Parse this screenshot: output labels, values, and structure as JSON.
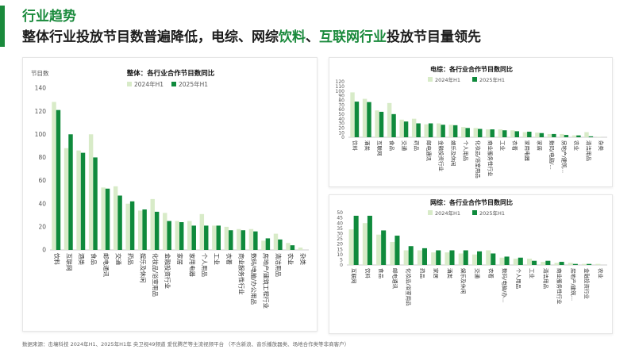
{
  "header": {
    "kicker": "行业趋势",
    "headline_parts": [
      "整体行业投放节目数普遍降低，电综、网综",
      "饮料",
      "、",
      "互联网行业",
      "投放节目量领先"
    ]
  },
  "colors": {
    "accent": "#1a8a3c",
    "series_2024": "#d8ebc8",
    "series_2025": "#0f8a3c"
  },
  "chart_data": [
    {
      "type": "bar",
      "title": "整体：各行业合作节目数同比",
      "ylabel": "节目数",
      "ylim": [
        0,
        140
      ],
      "yticks": [
        0,
        20,
        40,
        60,
        80,
        100,
        120,
        140
      ],
      "grid": false,
      "legend": "top-center",
      "categories": [
        "饮料",
        "互联网",
        "酒类",
        "食品",
        "邮电通讯",
        "交通",
        "药品",
        "娱乐及休闲",
        "化妆品/浴室用品",
        "金融投资行业",
        "家居",
        "家用电器",
        "个人用品",
        "工业",
        "衣着",
        "商业服务性行业",
        "数码/电脑/办公用品",
        "房地产/建筑工程行业",
        "清洁用品",
        "农业",
        "杂类"
      ],
      "series": [
        {
          "name": "2024年H1",
          "values": [
            128,
            88,
            86,
            100,
            54,
            55,
            40,
            34,
            44,
            32,
            25,
            25,
            31,
            21,
            20,
            18,
            18,
            8,
            14,
            6,
            2
          ]
        },
        {
          "name": "2025年H1",
          "values": [
            121,
            100,
            84,
            80,
            53,
            47,
            42,
            35,
            33,
            25,
            24,
            21,
            21,
            21,
            17,
            17,
            16,
            10,
            9,
            4,
            0
          ]
        }
      ]
    },
    {
      "type": "bar",
      "title": "电综：各行业合作节目数同比",
      "ylim": [
        0,
        120
      ],
      "yticks": [
        0,
        10,
        20,
        30,
        40,
        50,
        60,
        70,
        80,
        90,
        100,
        110,
        120
      ],
      "grid": false,
      "legend": "top-center",
      "categories": [
        "饮料",
        "酒类",
        "互联网",
        "食品",
        "交通",
        "药品",
        "邮电通讯",
        "金融投资行业",
        "娱乐及休闲",
        "个人用品",
        "化妆品/浴室用品",
        "商业服务性行业",
        "工业",
        "衣着",
        "家用电器",
        "家居",
        "数码/电脑/…",
        "房地产/建筑…",
        "农业",
        "清洁用品",
        "杂类"
      ],
      "series": [
        {
          "name": "2024年H1",
          "values": [
            97,
            83,
            58,
            74,
            38,
            40,
            28,
            30,
            27,
            22,
            20,
            17,
            17,
            15,
            11,
            10,
            7,
            7,
            4,
            11,
            1
          ]
        },
        {
          "name": "2025年H1",
          "values": [
            77,
            76,
            55,
            50,
            34,
            30,
            30,
            27,
            26,
            20,
            18,
            17,
            15,
            13,
            12,
            9,
            7,
            5,
            4,
            2,
            0
          ]
        }
      ]
    },
    {
      "type": "bar",
      "title": "网综：各行业合作节目数同比",
      "ylim": [
        0,
        50
      ],
      "yticks": [
        0,
        5,
        10,
        15,
        20,
        25,
        30,
        35,
        40,
        45,
        50
      ],
      "grid": false,
      "legend": "top-center",
      "categories": [
        "互联网",
        "饮料",
        "食品",
        "邮电通讯",
        "化妆品/浴室用品",
        "药品",
        "家居",
        "酒类",
        "娱乐及休闲",
        "交通",
        "衣着",
        "数码/电脑/办…",
        "个人用品",
        "工业",
        "清洁用品",
        "商业服务性行业",
        "房地产/建筑…",
        "金融投资行业",
        "农业"
      ],
      "series": [
        {
          "name": "2024年H1",
          "values": [
            34,
            40,
            29,
            22,
            14,
            14,
            12,
            12,
            11,
            10,
            14,
            7,
            6,
            6,
            3,
            2,
            2,
            1,
            1
          ]
        },
        {
          "name": "2025年H1",
          "values": [
            47,
            47,
            33,
            28,
            18,
            16,
            14,
            14,
            14,
            13,
            11,
            8,
            7,
            4,
            4,
            3,
            1,
            1,
            0
          ]
        }
      ]
    }
  ],
  "footnote": "数据来源：击壤科技  2024年H1、2025年H1年 央卫视49频道  爱优腾芒等主流视频平台  （不含新浪、音乐播放器类、场地合作类等非商客户）"
}
